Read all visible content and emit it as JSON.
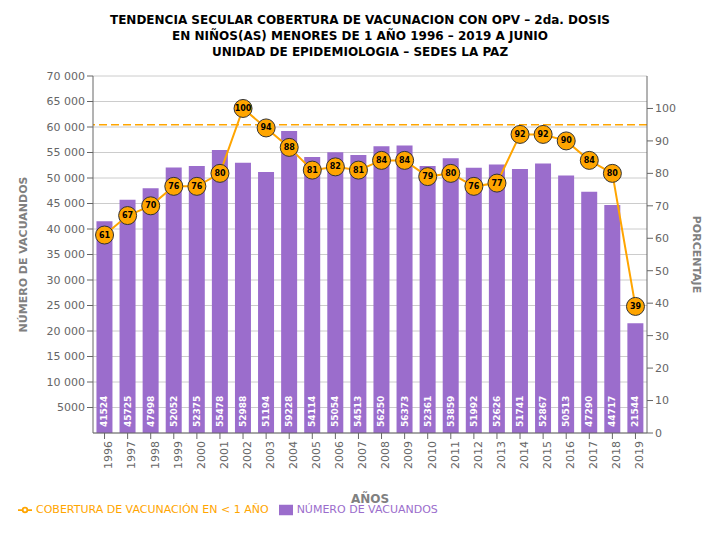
{
  "chart_data": {
    "type": "bar",
    "title": "TENDENCIA SECULAR COBERTURA DE VACUNACION CON OPV – 2da. DOSIS\nEN NIÑOS(AS) MENORES DE 1 AÑO 1996  – 2019 A JUNIO\nUNIDAD DE EPIDEMIOLOGIA – SEDES LA PAZ",
    "xlabel": "AÑOS",
    "ylabel": "NÚMERO DE VACUANDOS",
    "y2label": "PORCENTAJE",
    "categories": [
      1996,
      1997,
      1998,
      1999,
      2000,
      2001,
      2002,
      2003,
      2004,
      2005,
      2006,
      2007,
      2008,
      2009,
      2010,
      2011,
      2012,
      2013,
      2014,
      2015,
      2016,
      2017,
      2018,
      2019
    ],
    "series": [
      {
        "name": "NÚMERO DE VACUANDOS",
        "type": "bar",
        "color": "#9b6dcc",
        "data_labels": true,
        "values": [
          41524,
          45725,
          47998,
          52052,
          52375,
          55478,
          52988,
          51194,
          59228,
          54114,
          55054,
          54513,
          56250,
          56373,
          52361,
          53859,
          51992,
          52626,
          51741,
          52867,
          50513,
          47290,
          44717,
          21544
        ]
      },
      {
        "name": "COBERTURA DE VACUNACIÓN EN < 1 AÑO",
        "type": "line",
        "axis": "y2",
        "color": "#FFA500",
        "marker": "circle",
        "data_labels": true,
        "values": [
          61,
          67,
          70,
          76,
          76,
          80,
          100,
          94,
          88,
          81,
          82,
          81,
          84,
          84,
          79,
          80,
          76,
          77,
          92,
          92,
          90,
          84,
          80,
          39
        ]
      }
    ],
    "ylim": [
      0,
      70000
    ],
    "yticks": [
      5000,
      {
        "value": 10000,
        "label": "10 000"
      },
      {
        "value": 15000,
        "label": "15 000"
      },
      {
        "value": 20000,
        "label": "20 000"
      },
      {
        "value": 25000,
        "label": "25 000"
      },
      {
        "value": 30000,
        "label": "30 000"
      },
      {
        "value": 35000,
        "label": "35 000"
      },
      {
        "value": 40000,
        "label": "40 000"
      },
      {
        "value": 45000,
        "label": "45 000"
      },
      {
        "value": 50000,
        "label": "50 000"
      },
      {
        "value": 55000,
        "label": "55 000"
      },
      {
        "value": 60000,
        "label": "60 000"
      },
      {
        "value": 65000,
        "label": "65 000"
      },
      {
        "value": 70000,
        "label": "70 000"
      }
    ],
    "y2lim": [
      0,
      110
    ],
    "y2ticks": [
      0,
      10,
      20,
      30,
      40,
      50,
      60,
      70,
      80,
      90,
      100
    ],
    "reference_lines": [
      {
        "axis": "y2",
        "y": 95,
        "color": "#FFA500",
        "line_style": "dashed"
      }
    ],
    "grid": true,
    "legend": "lower left"
  }
}
